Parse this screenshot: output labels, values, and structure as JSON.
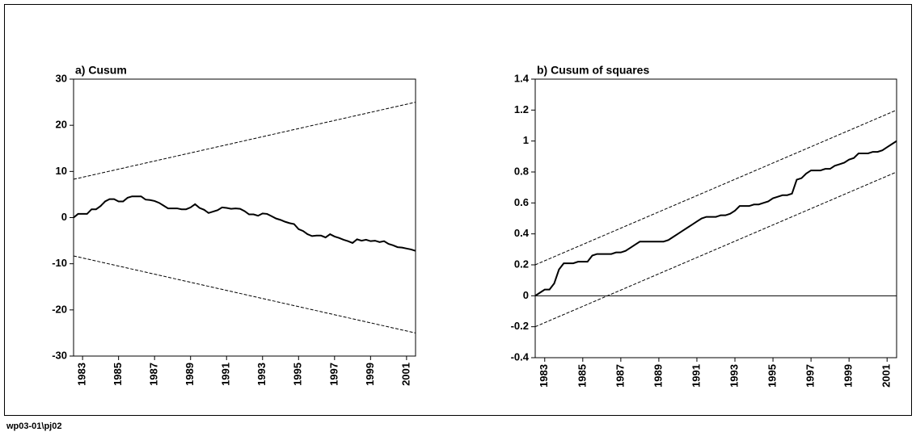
{
  "chart_data": [
    {
      "type": "line",
      "title": "a) Cusum",
      "x": [
        1982.5,
        1982.75,
        1983,
        1983.25,
        1983.5,
        1983.75,
        1984,
        1984.25,
        1984.5,
        1984.75,
        1985,
        1985.25,
        1985.5,
        1985.75,
        1986,
        1986.25,
        1986.5,
        1986.75,
        1987,
        1987.25,
        1987.5,
        1987.75,
        1988,
        1988.25,
        1988.5,
        1988.75,
        1989,
        1989.25,
        1989.5,
        1989.75,
        1990,
        1990.25,
        1990.5,
        1990.75,
        1991,
        1991.25,
        1991.5,
        1991.75,
        1992,
        1992.25,
        1992.5,
        1992.75,
        1993,
        1993.25,
        1993.5,
        1993.75,
        1994,
        1994.25,
        1994.5,
        1994.75,
        1995,
        1995.25,
        1995.5,
        1995.75,
        1996,
        1996.25,
        1996.5,
        1996.75,
        1997,
        1997.25,
        1997.5,
        1997.75,
        1998,
        1998.25,
        1998.5,
        1998.75,
        1999,
        1999.25,
        1999.5,
        1999.75,
        2000,
        2000.25,
        2000.5,
        2000.75,
        2001,
        2001.25,
        2001.5
      ],
      "series": [
        {
          "color": "#000000",
          "values": [
            0,
            0.8,
            0.8,
            0.8,
            1.8,
            1.8,
            2.5,
            3.5,
            4,
            4,
            3.5,
            3.5,
            4.3,
            4.6,
            4.6,
            4.6,
            3.9,
            3.8,
            3.6,
            3.2,
            2.6,
            2,
            2,
            2,
            1.8,
            1.8,
            2.2,
            2.9,
            2.1,
            1.7,
            1,
            1.3,
            1.6,
            2.2,
            2.1,
            1.9,
            2,
            1.9,
            1.4,
            0.7,
            0.7,
            0.4,
            0.9,
            0.8,
            0.3,
            -0.2,
            -0.5,
            -0.9,
            -1.2,
            -1.4,
            -2.5,
            -2.9,
            -3.6,
            -4,
            -3.9,
            -3.9,
            -4.3,
            -3.6,
            -4.1,
            -4.4,
            -4.8,
            -5.1,
            -5.5,
            -4.7,
            -5,
            -4.8,
            -5.1,
            -5,
            -5.3,
            -5.1,
            -5.7,
            -6,
            -6.4,
            -6.5,
            -6.7,
            -6.9,
            -7.2
          ]
        },
        {
          "color": "#000000",
          "dashed": true,
          "x": [
            1982.5,
            2001.5
          ],
          "values": [
            8.3,
            25
          ]
        },
        {
          "color": "#000000",
          "dashed": true,
          "x": [
            1982.5,
            2001.5
          ],
          "values": [
            -8.3,
            -25
          ]
        }
      ],
      "xlim": [
        1982.5,
        2001.5
      ],
      "xticks": [
        1983,
        1985,
        1987,
        1989,
        1991,
        1993,
        1995,
        1997,
        1999,
        2001
      ],
      "ylim": [
        -30,
        30
      ],
      "yticks": [
        -30,
        -20,
        -10,
        0,
        10,
        20,
        30
      ]
    },
    {
      "type": "line",
      "title": "b) Cusum of squares",
      "x": [
        1982.5,
        1982.75,
        1983,
        1983.25,
        1983.5,
        1983.75,
        1984,
        1984.25,
        1984.5,
        1984.75,
        1985,
        1985.25,
        1985.5,
        1985.75,
        1986,
        1986.25,
        1986.5,
        1986.75,
        1987,
        1987.25,
        1987.5,
        1987.75,
        1988,
        1988.25,
        1988.5,
        1988.75,
        1989,
        1989.25,
        1989.5,
        1989.75,
        1990,
        1990.25,
        1990.5,
        1990.75,
        1991,
        1991.25,
        1991.5,
        1991.75,
        1992,
        1992.25,
        1992.5,
        1992.75,
        1993,
        1993.25,
        1993.5,
        1993.75,
        1994,
        1994.25,
        1994.5,
        1994.75,
        1995,
        1995.25,
        1995.5,
        1995.75,
        1996,
        1996.25,
        1996.5,
        1996.75,
        1997,
        1997.25,
        1997.5,
        1997.75,
        1998,
        1998.25,
        1998.5,
        1998.75,
        1999,
        1999.25,
        1999.5,
        1999.75,
        2000,
        2000.25,
        2000.5,
        2000.75,
        2001,
        2001.25,
        2001.5
      ],
      "series": [
        {
          "color": "#000000",
          "values": [
            0,
            0.02,
            0.04,
            0.04,
            0.08,
            0.17,
            0.21,
            0.21,
            0.21,
            0.22,
            0.22,
            0.22,
            0.26,
            0.27,
            0.27,
            0.27,
            0.27,
            0.28,
            0.28,
            0.29,
            0.31,
            0.33,
            0.35,
            0.35,
            0.35,
            0.35,
            0.35,
            0.35,
            0.36,
            0.38,
            0.4,
            0.42,
            0.44,
            0.46,
            0.48,
            0.5,
            0.51,
            0.51,
            0.51,
            0.52,
            0.52,
            0.53,
            0.55,
            0.58,
            0.58,
            0.58,
            0.59,
            0.59,
            0.6,
            0.61,
            0.63,
            0.64,
            0.65,
            0.65,
            0.66,
            0.75,
            0.76,
            0.79,
            0.81,
            0.81,
            0.81,
            0.82,
            0.82,
            0.84,
            0.85,
            0.86,
            0.88,
            0.89,
            0.92,
            0.92,
            0.92,
            0.93,
            0.93,
            0.94,
            0.96,
            0.98,
            1.0
          ]
        },
        {
          "color": "#000000",
          "dashed": true,
          "x": [
            1982.5,
            2001.5
          ],
          "values": [
            0.2,
            1.2
          ]
        },
        {
          "color": "#000000",
          "dashed": true,
          "x": [
            1982.5,
            2001.5
          ],
          "values": [
            -0.2,
            0.8
          ]
        }
      ],
      "reference_line": 0,
      "xlim": [
        1982.5,
        2001.5
      ],
      "xticks": [
        1983,
        1985,
        1987,
        1989,
        1991,
        1993,
        1995,
        1997,
        1999,
        2001
      ],
      "ylim": [
        -0.4,
        1.4
      ],
      "yticks": [
        -0.4,
        -0.2,
        0,
        0.2,
        0.4,
        0.6,
        0.8,
        1,
        1.2,
        1.4
      ]
    }
  ],
  "footer": "wp03-01\\pj02"
}
